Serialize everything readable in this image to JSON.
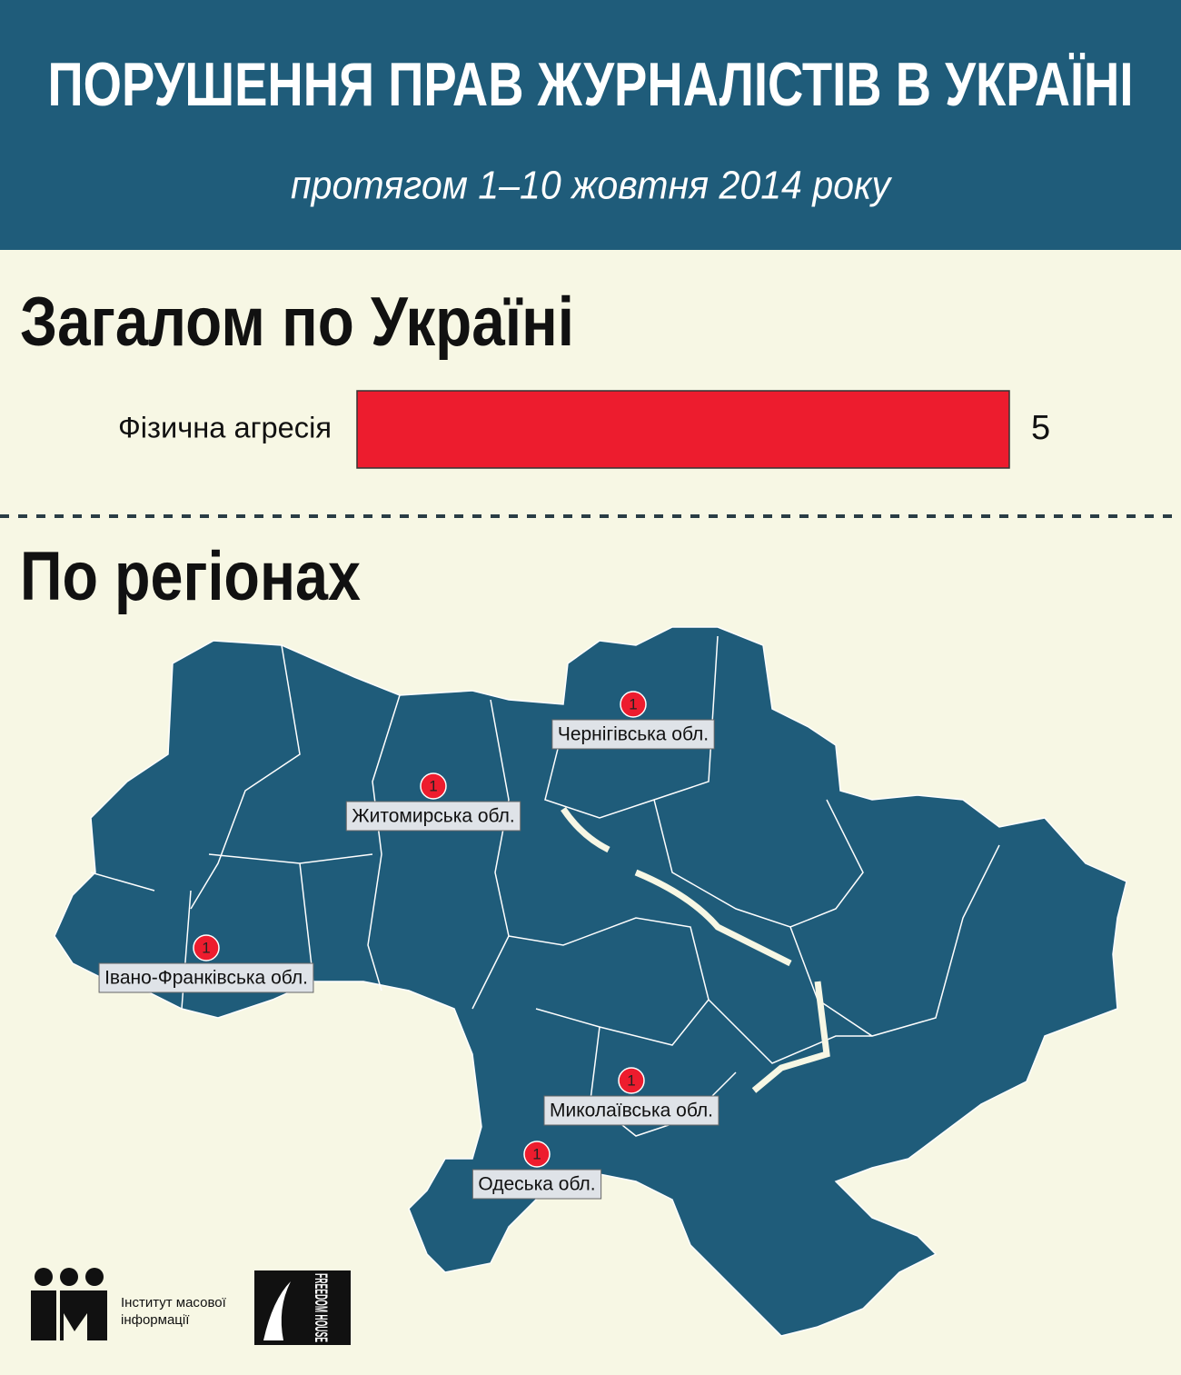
{
  "header": {
    "title": "ПОРУШЕННЯ ПРАВ ЖУРНАЛІСТІВ В УКРАЇНІ",
    "subtitle": "протягом 1–10 жовтня 2014 року"
  },
  "chart_data": {
    "type": "bar",
    "orientation": "horizontal",
    "title": "Загалом по Україні",
    "categories": [
      "Фізична агресія"
    ],
    "values": [
      5
    ],
    "color": "#ed1c2e",
    "xlim": [
      0,
      5
    ]
  },
  "map": {
    "title": "По регіонах",
    "color": "#1f5c7a",
    "marker_color": "#ed1c2e",
    "regions": [
      {
        "name": "Чернігівська обл.",
        "count": 1
      },
      {
        "name": "Житомирська обл.",
        "count": 1
      },
      {
        "name": "Івано-Франківська обл.",
        "count": 1
      },
      {
        "name": "Миколаївська обл.",
        "count": 1
      },
      {
        "name": "Одеська обл.",
        "count": 1
      }
    ]
  },
  "footer": {
    "imi": "Інститут масової інформації",
    "freedom_house": "FREEDOM HOUSE"
  }
}
